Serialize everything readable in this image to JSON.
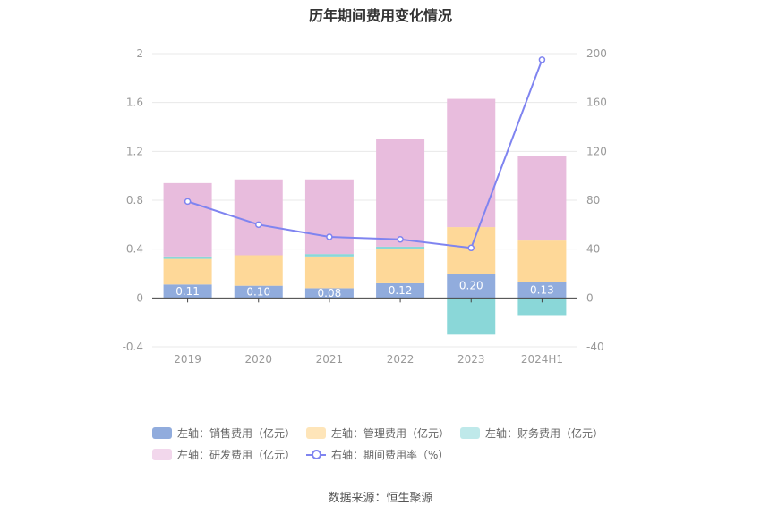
{
  "chart_data": {
    "type": "bar",
    "title": "历年期间费用变化情况",
    "categories": [
      "2019",
      "2020",
      "2021",
      "2022",
      "2023",
      "2024H1"
    ],
    "left_axis": {
      "ticks": [
        "2",
        "1.6",
        "1.2",
        "0.8",
        "0.4",
        "0",
        "-0.4"
      ],
      "ylim": [
        -0.4,
        2
      ]
    },
    "right_axis": {
      "ticks": [
        "200",
        "160",
        "120",
        "80",
        "40",
        "0",
        "-40"
      ],
      "ylim": [
        -40,
        200
      ]
    },
    "stacked": true,
    "series": [
      {
        "name": "左轴：销售费用（亿元）",
        "axis": "left",
        "color": "#91acdd",
        "values": [
          0.11,
          0.1,
          0.08,
          0.12,
          0.2,
          0.13
        ]
      },
      {
        "name": "左轴：管理费用（亿元）",
        "axis": "left",
        "color": "#fed898",
        "values": [
          0.21,
          0.25,
          0.26,
          0.28,
          0.38,
          0.34
        ]
      },
      {
        "name": "左轴：财务费用（亿元）",
        "axis": "left",
        "color": "#8ad7d8",
        "values": [
          0.02,
          0.0,
          0.02,
          0.02,
          -0.3,
          -0.14
        ]
      },
      {
        "name": "左轴：研发费用（亿元）",
        "axis": "left",
        "color": "#e8bcdd",
        "values": [
          0.6,
          0.62,
          0.61,
          0.88,
          1.05,
          0.69
        ]
      },
      {
        "name": "右轴：期间费用率（%）",
        "axis": "right",
        "type": "line",
        "color": "#7f84f0",
        "values": [
          79,
          60,
          50,
          48,
          41,
          195
        ]
      }
    ],
    "data_labels": [
      "0.11",
      "0.10",
      "0.08",
      "0.12",
      "0.20",
      "0.13"
    ]
  },
  "legend": {
    "sales": "左轴：销售费用（亿元）",
    "admin": "左轴：管理费用（亿元）",
    "finance": "左轴：财务费用（亿元）",
    "rnd": "左轴：研发费用（亿元）",
    "rate": "右轴：期间费用率（%）"
  },
  "source": "数据来源：恒生聚源"
}
